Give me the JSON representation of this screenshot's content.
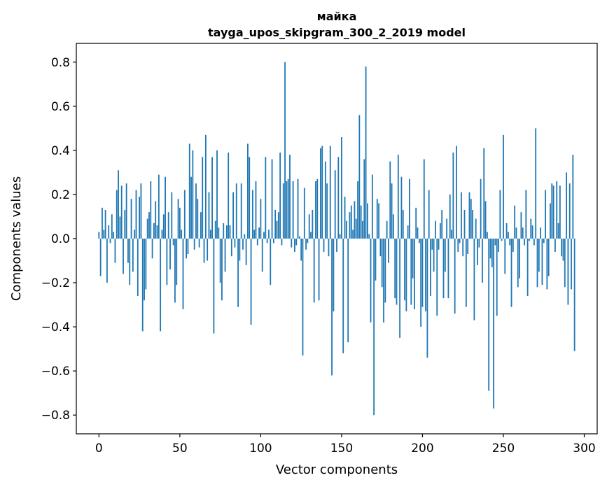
{
  "chart_data": {
    "type": "bar",
    "title": "майка",
    "subtitle": "tayga_upos_skipgram_300_2_2019 model",
    "xlabel": "Vector components",
    "ylabel": "Components values",
    "xlim": [
      -14,
      308
    ],
    "ylim": [
      -0.885,
      0.885
    ],
    "x_ticks": [
      0,
      50,
      100,
      150,
      200,
      250,
      300
    ],
    "x_tick_labels": [
      "0",
      "50",
      "100",
      "150",
      "200",
      "250",
      "300"
    ],
    "y_ticks": [
      0.8,
      0.6,
      0.4,
      0.2,
      0.0,
      -0.2,
      -0.4,
      -0.6,
      -0.8
    ],
    "y_tick_labels": [
      "0.8",
      "0.6",
      "0.4",
      "0.2",
      "0.0",
      "−0.2",
      "−0.4",
      "−0.6",
      "−0.8"
    ],
    "bar_color": "#1f77b4",
    "values": [
      0.03,
      -0.17,
      0.14,
      0.04,
      0.13,
      -0.2,
      0.06,
      -0.02,
      0.11,
      0.03,
      -0.11,
      0.22,
      0.31,
      0.1,
      0.24,
      -0.16,
      0.13,
      0.25,
      -0.11,
      -0.21,
      0.18,
      -0.15,
      0.04,
      0.22,
      -0.26,
      0.19,
      0.25,
      -0.42,
      -0.28,
      -0.23,
      0.09,
      0.12,
      0.26,
      -0.09,
      0.07,
      0.17,
      0.06,
      0.29,
      -0.42,
      0.04,
      0.11,
      0.28,
      -0.21,
      0.12,
      -0.14,
      0.21,
      -0.03,
      -0.29,
      -0.21,
      0.18,
      0.14,
      0.04,
      -0.32,
      0.22,
      -0.09,
      -0.07,
      0.43,
      0.28,
      0.4,
      -0.05,
      0.25,
      0.18,
      -0.04,
      0.12,
      0.37,
      -0.11,
      0.47,
      -0.1,
      0.21,
      0.04,
      0.37,
      -0.43,
      0.08,
      0.4,
      0.05,
      -0.2,
      -0.28,
      0.07,
      -0.15,
      0.06,
      0.39,
      0.06,
      -0.08,
      0.21,
      -0.04,
      0.25,
      -0.31,
      -0.1,
      0.25,
      -0.05,
      0.02,
      -0.12,
      0.43,
      0.37,
      -0.39,
      0.22,
      0.04,
      0.26,
      -0.03,
      0.05,
      0.18,
      -0.15,
      0.03,
      0.37,
      -0.02,
      0.04,
      -0.21,
      0.36,
      -0.02,
      0.13,
      0.08,
      0.12,
      0.39,
      -0.03,
      0.25,
      0.8,
      0.26,
      0.27,
      0.38,
      -0.04,
      0.26,
      -0.06,
      -0.03,
      0.27,
      0.01,
      -0.1,
      -0.53,
      0.23,
      -0.05,
      -0.02,
      0.11,
      0.03,
      0.13,
      -0.29,
      0.26,
      0.27,
      -0.28,
      0.41,
      0.42,
      -0.06,
      0.35,
      0.25,
      -0.08,
      0.42,
      -0.62,
      -0.33,
      0.31,
      -0.06,
      0.37,
      0.02,
      0.46,
      -0.52,
      0.19,
      0.08,
      -0.47,
      0.12,
      0.15,
      0.04,
      0.17,
      0.09,
      0.26,
      0.56,
      0.15,
      0.08,
      0.36,
      0.78,
      0.16,
      0.02,
      -0.38,
      0.29,
      -0.8,
      -0.19,
      0.18,
      0.16,
      -0.08,
      -0.22,
      -0.38,
      -0.29,
      0.08,
      -0.11,
      0.35,
      0.25,
      0.11,
      -0.27,
      -0.3,
      0.38,
      -0.45,
      0.28,
      0.13,
      -0.28,
      -0.33,
      0.06,
      0.27,
      -0.3,
      -0.18,
      -0.32,
      0.14,
      0.05,
      -0.02,
      -0.4,
      -0.31,
      0.36,
      -0.33,
      -0.54,
      0.22,
      -0.26,
      -0.05,
      -0.15,
      0.08,
      -0.35,
      -0.05,
      0.07,
      0.13,
      -0.27,
      -0.15,
      0.09,
      -0.27,
      0.2,
      0.04,
      0.39,
      -0.34,
      0.42,
      -0.06,
      -0.02,
      0.21,
      -0.08,
      0.13,
      -0.31,
      -0.07,
      0.21,
      0.18,
      0.13,
      -0.37,
      0.09,
      -0.12,
      -0.04,
      0.27,
      -0.2,
      0.41,
      0.17,
      0.03,
      -0.69,
      -0.09,
      -0.13,
      -0.77,
      -0.03,
      -0.35,
      -0.06,
      0.22,
      -0.01,
      0.47,
      -0.16,
      0.07,
      0.03,
      -0.03,
      -0.31,
      -0.06,
      0.15,
      0.05,
      -0.22,
      -0.18,
      0.12,
      0.05,
      -0.03,
      0.22,
      -0.26,
      -0.01,
      0.09,
      0.06,
      -0.03,
      0.5,
      -0.22,
      -0.15,
      0.05,
      -0.21,
      -0.02,
      0.22,
      -0.23,
      -0.17,
      0.16,
      0.25,
      0.24,
      -0.06,
      0.26,
      0.07,
      0.24,
      -0.08,
      -0.1,
      -0.22,
      0.3,
      -0.3,
      0.25,
      -0.23,
      0.38,
      -0.51
    ]
  }
}
